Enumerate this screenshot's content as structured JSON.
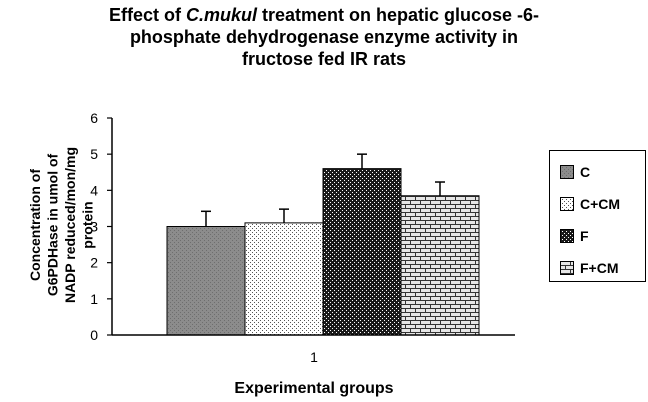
{
  "chart_data": {
    "type": "bar",
    "title_parts": [
      "Effect of ",
      "C.mukul",
      " treatment on hepatic glucose -6-"
    ],
    "title_line2": "phosphate dehydrogenase enzyme activity in",
    "title_line3": "fructose fed IR rats",
    "ylabel_lines": [
      "Concentration of",
      "G6PDHase in umol of",
      "NADP reduced/mon/mg",
      "protein"
    ],
    "xlabel": "Experimental groups",
    "categories": [
      "1"
    ],
    "ylim": [
      0,
      6
    ],
    "yticks": [
      "0",
      "1",
      "2",
      "3",
      "4",
      "5",
      "6"
    ],
    "series": [
      {
        "name": "C",
        "values": [
          3.0
        ],
        "error": [
          0.42
        ],
        "pattern": "gray"
      },
      {
        "name": "C+CM",
        "values": [
          3.1
        ],
        "error": [
          0.38
        ],
        "pattern": "dots"
      },
      {
        "name": "F",
        "values": [
          4.6
        ],
        "error": [
          0.4
        ],
        "pattern": "checker"
      },
      {
        "name": "F+CM",
        "values": [
          3.85
        ],
        "error": [
          0.38
        ],
        "pattern": "brick"
      }
    ],
    "grid": false,
    "legend": "right"
  }
}
